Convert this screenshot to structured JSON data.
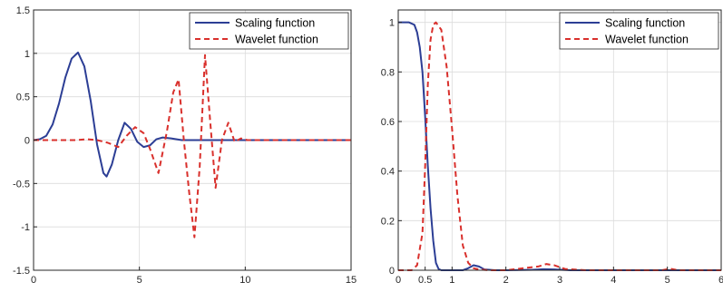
{
  "chart_data": [
    {
      "type": "line",
      "title": "",
      "xlabel": "",
      "ylabel": "",
      "xlim": [
        0,
        15
      ],
      "ylim": [
        -1.5,
        1.5
      ],
      "xticks": [
        0,
        5,
        10,
        15
      ],
      "yticks": [
        -1.5,
        -1,
        -0.5,
        0,
        0.5,
        1,
        1.5
      ],
      "xtick_labels": [
        "0",
        "5",
        "10",
        "15"
      ],
      "ytick_labels": [
        "-1.5",
        "-1",
        "-0.5",
        "0",
        "0.5",
        "1",
        "1.5"
      ],
      "grid": true,
      "legend_position": "top-right",
      "series": [
        {
          "name": "Scaling function",
          "color": "#2c3e95",
          "style": "solid",
          "x": [
            0,
            0.3,
            0.6,
            0.9,
            1.2,
            1.5,
            1.8,
            2.1,
            2.4,
            2.7,
            3.0,
            3.3,
            3.45,
            3.7,
            4.0,
            4.3,
            4.6,
            4.9,
            5.2,
            5.5,
            5.8,
            6.1,
            6.5,
            7.0,
            8.0,
            10.0,
            12.0,
            15.0
          ],
          "y": [
            0,
            0.01,
            0.05,
            0.18,
            0.42,
            0.72,
            0.94,
            1.01,
            0.85,
            0.45,
            -0.05,
            -0.38,
            -0.42,
            -0.28,
            0.0,
            0.2,
            0.13,
            -0.02,
            -0.08,
            -0.06,
            0.01,
            0.03,
            0.02,
            0.0,
            0.0,
            0.0,
            0.0,
            0.0
          ]
        },
        {
          "name": "Wavelet function",
          "color": "#d9302c",
          "style": "dashed",
          "x": [
            0,
            1.0,
            2.0,
            2.5,
            3.0,
            3.5,
            4.0,
            4.4,
            4.8,
            5.2,
            5.5,
            5.9,
            6.3,
            6.6,
            6.85,
            7.1,
            7.35,
            7.6,
            7.85,
            8.1,
            8.35,
            8.6,
            8.9,
            9.2,
            9.5,
            9.8,
            10.1,
            11.0,
            13.0,
            15.0
          ],
          "y": [
            0,
            0,
            0.0,
            0.01,
            0.0,
            -0.03,
            -0.08,
            0.05,
            0.15,
            0.08,
            -0.1,
            -0.38,
            0.1,
            0.55,
            0.7,
            0.0,
            -0.6,
            -1.12,
            -0.3,
            0.98,
            0.2,
            -0.55,
            0.0,
            0.2,
            -0.02,
            0.02,
            0.0,
            0.0,
            0.0,
            0.0
          ]
        }
      ]
    },
    {
      "type": "line",
      "title": "",
      "xlabel": "",
      "ylabel": "",
      "xlim": [
        0,
        6
      ],
      "ylim": [
        0,
        1.05
      ],
      "xticks": [
        0,
        0.5,
        1,
        2,
        3,
        4,
        5,
        6
      ],
      "yticks": [
        0,
        0.2,
        0.4,
        0.6,
        0.8,
        1
      ],
      "xtick_labels": [
        "0",
        "0.5",
        "1",
        "2",
        "3",
        "4",
        "5",
        "6"
      ],
      "ytick_labels": [
        "0",
        "0.2",
        "0.4",
        "0.6",
        "0.8",
        "1"
      ],
      "grid": true,
      "legend_position": "top-right",
      "series": [
        {
          "name": "Scaling function",
          "color": "#2c3e95",
          "style": "solid",
          "x": [
            0,
            0.2,
            0.3,
            0.35,
            0.4,
            0.45,
            0.5,
            0.55,
            0.6,
            0.65,
            0.7,
            0.75,
            0.8,
            0.9,
            1.0,
            1.2,
            1.3,
            1.4,
            1.5,
            1.6,
            1.8,
            2.0,
            2.5,
            2.7,
            2.9,
            3.2,
            4.0,
            5.0,
            6.0
          ],
          "y": [
            1.0,
            1.0,
            0.99,
            0.96,
            0.9,
            0.8,
            0.62,
            0.42,
            0.25,
            0.12,
            0.03,
            0.005,
            0.0,
            0.0,
            0.0,
            0.0,
            0.008,
            0.02,
            0.015,
            0.003,
            0.0,
            0.0,
            0.002,
            0.004,
            0.003,
            0.0,
            0.0,
            0.0,
            0.0
          ]
        },
        {
          "name": "Wavelet function",
          "color": "#d9302c",
          "style": "dashed",
          "x": [
            0,
            0.25,
            0.35,
            0.45,
            0.5,
            0.55,
            0.6,
            0.65,
            0.7,
            0.8,
            0.9,
            1.0,
            1.1,
            1.2,
            1.3,
            1.4,
            1.5,
            1.7,
            2.0,
            2.6,
            2.75,
            2.9,
            3.1,
            3.5,
            4.0,
            4.9,
            5.05,
            5.2,
            5.5,
            6.0
          ],
          "y": [
            0,
            0.0,
            0.02,
            0.15,
            0.42,
            0.75,
            0.93,
            0.99,
            1.0,
            0.97,
            0.82,
            0.57,
            0.3,
            0.1,
            0.03,
            0.008,
            0.003,
            0.0,
            0.0,
            0.015,
            0.025,
            0.02,
            0.005,
            0.0,
            0.0,
            0.0,
            0.006,
            0.0,
            0.0,
            0.0
          ]
        }
      ]
    }
  ]
}
